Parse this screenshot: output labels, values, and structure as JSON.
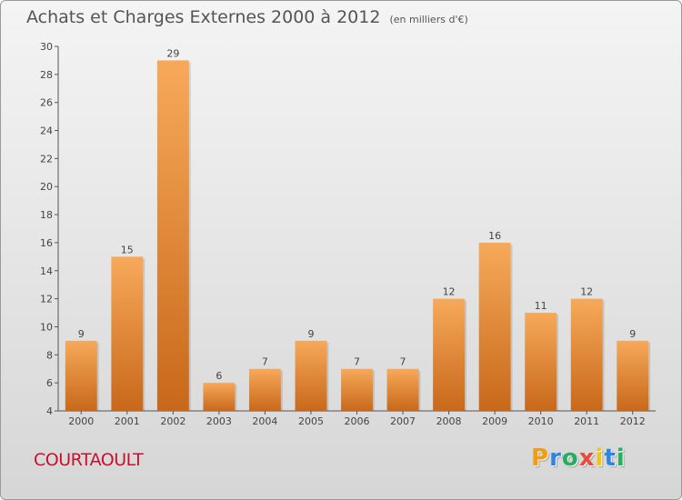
{
  "header": {
    "title": "Achats et Charges Externes 2000 à 2012",
    "subtitle": "(en milliers d'€)"
  },
  "location": "COURTAOULT",
  "brand": {
    "letters": [
      "P",
      "r",
      "o",
      "x",
      "i",
      "t",
      "i"
    ],
    "colors": [
      "#f39c12",
      "#2e86de",
      "#27ae60",
      "#e74c3c",
      "#f1c40f",
      "#2e86de",
      "#27ae60"
    ]
  },
  "colors": {
    "bar_light": "#f7a95a",
    "bar_dark": "#c8681a",
    "location": "#c8102e"
  },
  "chart_data": {
    "type": "bar",
    "categories": [
      "2000",
      "2001",
      "2002",
      "2003",
      "2004",
      "2005",
      "2006",
      "2007",
      "2008",
      "2009",
      "2010",
      "2011",
      "2012"
    ],
    "values": [
      9,
      15,
      29,
      6,
      7,
      9,
      7,
      7,
      12,
      16,
      11,
      12,
      9
    ],
    "data_labels": [
      "9",
      "15",
      "29",
      "6",
      "7",
      "9",
      "7",
      "7",
      "12",
      "16",
      "11",
      "12",
      "9"
    ],
    "ylim": [
      4,
      30
    ],
    "yticks": [
      4,
      6,
      8,
      10,
      12,
      14,
      16,
      18,
      20,
      22,
      24,
      26,
      28,
      30
    ],
    "grid": false,
    "xlabel": "",
    "ylabel": ""
  }
}
